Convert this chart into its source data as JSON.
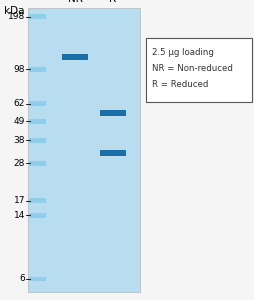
{
  "fig_bg": "#f0f0f0",
  "gel_bg": "#b8ddf0",
  "right_bg": "#f5f5f5",
  "ladder_band_color": "#7dc8e8",
  "ladder_band_alpha": 0.7,
  "NR_band_color": "#1a6fa8",
  "NR_band_alpha": 1.0,
  "R_band_color": "#1a6fa8",
  "R_band_alpha": 1.0,
  "ladder_bands_kda": [
    198,
    98,
    62,
    49,
    38,
    28,
    17,
    14,
    6
  ],
  "NR_bands_kda": [
    115
  ],
  "R_bands_kda": [
    55,
    32
  ],
  "kda_labels": [
    198,
    98,
    62,
    49,
    38,
    28,
    17,
    14,
    6
  ],
  "axis_label_fontsize": 6.5,
  "lane_label_fontsize": 7.5,
  "legend_text": [
    "2.5 μg loading",
    "NR = Non-reduced",
    "R = Reduced"
  ],
  "legend_fontsize": 6.2,
  "log_min": 0.748,
  "log_max": 2.3
}
